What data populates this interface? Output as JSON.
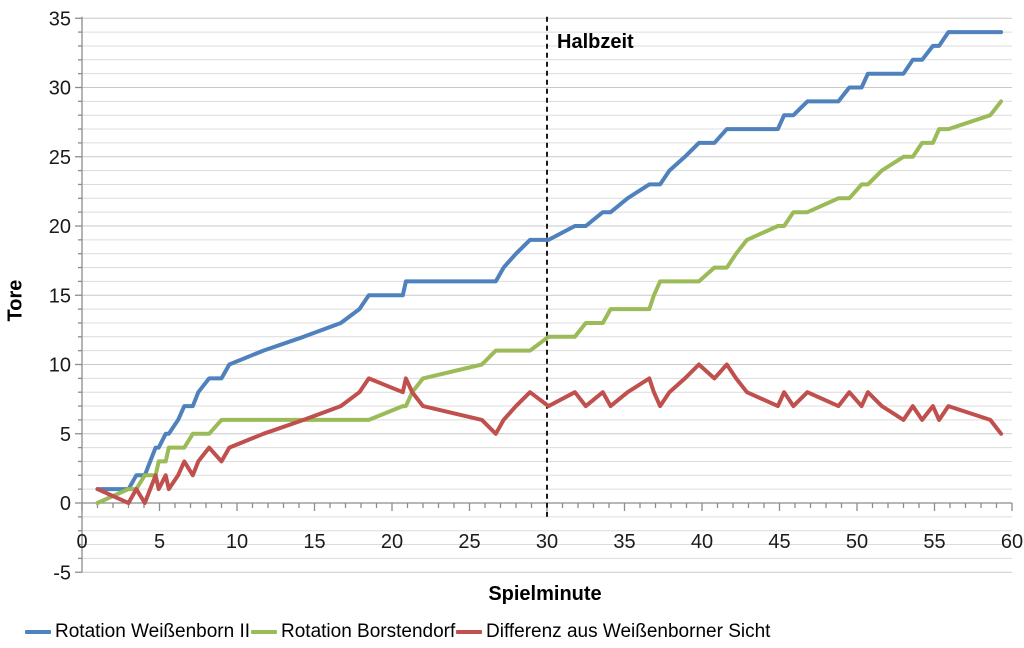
{
  "chart_data": {
    "type": "line",
    "title": "",
    "xlabel": "Spielminute",
    "ylabel": "Tore",
    "xlim": [
      0,
      60
    ],
    "ylim": [
      -5,
      35
    ],
    "x_ticks": [
      0,
      5,
      10,
      15,
      20,
      25,
      30,
      35,
      40,
      45,
      50,
      55,
      60
    ],
    "y_ticks": [
      -5,
      0,
      5,
      10,
      15,
      20,
      25,
      30,
      35
    ],
    "minor_grid_step": 1,
    "major_step": 5,
    "grid": "horizontal-only",
    "legend_position": "bottom",
    "annotation": {
      "label": "Halbzeit",
      "x": 30,
      "style": "dashed-vertical-line"
    },
    "x": [
      1,
      3,
      3.5,
      4.05,
      4.4,
      4.75,
      4.95,
      5.4,
      5.6,
      6.2,
      6.6,
      7.15,
      7.5,
      8.2,
      9,
      9.5,
      11.7,
      14.3,
      16.7,
      17.9,
      18.5,
      20.7,
      20.9,
      21.3,
      22,
      25.8,
      26.7,
      27.2,
      28,
      28.9,
      30.1,
      31.8,
      32.5,
      33.6,
      34.1,
      35.2,
      36.6,
      36.9,
      37.3,
      37.9,
      38.9,
      39.8,
      40.8,
      41.6,
      42.2,
      42.9,
      44.9,
      45.3,
      45.9,
      46.8,
      48.8,
      49.5,
      50.3,
      50.7,
      51.6,
      53,
      53.6,
      54.2,
      54.9,
      55.3,
      55.9,
      58.6,
      59.3
    ],
    "series": [
      {
        "name": "Rotation Weißenborn II",
        "color": "#4F81BD",
        "final_value": 34,
        "values": [
          1,
          1,
          2,
          2,
          3,
          4,
          4,
          5,
          5,
          6,
          7,
          7,
          8,
          9,
          9,
          10,
          11,
          12,
          13,
          14,
          15,
          15,
          16,
          16,
          16,
          16,
          16,
          17,
          18,
          19,
          19,
          20,
          20,
          21,
          21,
          22,
          23,
          23,
          23,
          24,
          25,
          26,
          26,
          27,
          27,
          27,
          27,
          28,
          28,
          29,
          29,
          30,
          30,
          31,
          31,
          31,
          32,
          32,
          33,
          33,
          34,
          34,
          34
        ]
      },
      {
        "name": "Rotation Borstendorf",
        "color": "#9BBB59",
        "final_value": 29,
        "values": [
          0,
          1,
          1,
          2,
          2,
          2,
          3,
          3,
          4,
          4,
          4,
          5,
          5,
          5,
          6,
          6,
          6,
          6,
          6,
          6,
          6,
          7,
          7,
          8,
          9,
          10,
          11,
          11,
          11,
          11,
          12,
          12,
          13,
          13,
          14,
          14,
          14,
          15,
          16,
          16,
          16,
          16,
          17,
          17,
          18,
          19,
          20,
          20,
          21,
          21,
          22,
          22,
          23,
          23,
          24,
          25,
          25,
          26,
          26,
          27,
          27,
          28,
          29
        ]
      },
      {
        "name": "Differenz aus Weißenborner Sicht",
        "color": "#C0504D",
        "final_value": 5,
        "values": [
          1,
          0,
          1,
          0,
          1,
          2,
          1,
          2,
          1,
          2,
          3,
          2,
          3,
          4,
          3,
          4,
          5,
          6,
          7,
          8,
          9,
          8,
          9,
          8,
          7,
          6,
          5,
          6,
          7,
          8,
          7,
          8,
          7,
          8,
          7,
          8,
          9,
          8,
          7,
          8,
          9,
          10,
          9,
          10,
          9,
          8,
          7,
          8,
          7,
          8,
          7,
          8,
          7,
          8,
          7,
          6,
          7,
          6,
          7,
          6,
          7,
          6,
          5
        ]
      }
    ],
    "colors": {
      "gridline_minor": "#dcdcdc",
      "gridline_major": "#c8c8c8",
      "axis_line": "#8c8c8c",
      "tick_label": "#1a1a1a",
      "annotation_line": "#1a1a1a"
    }
  }
}
